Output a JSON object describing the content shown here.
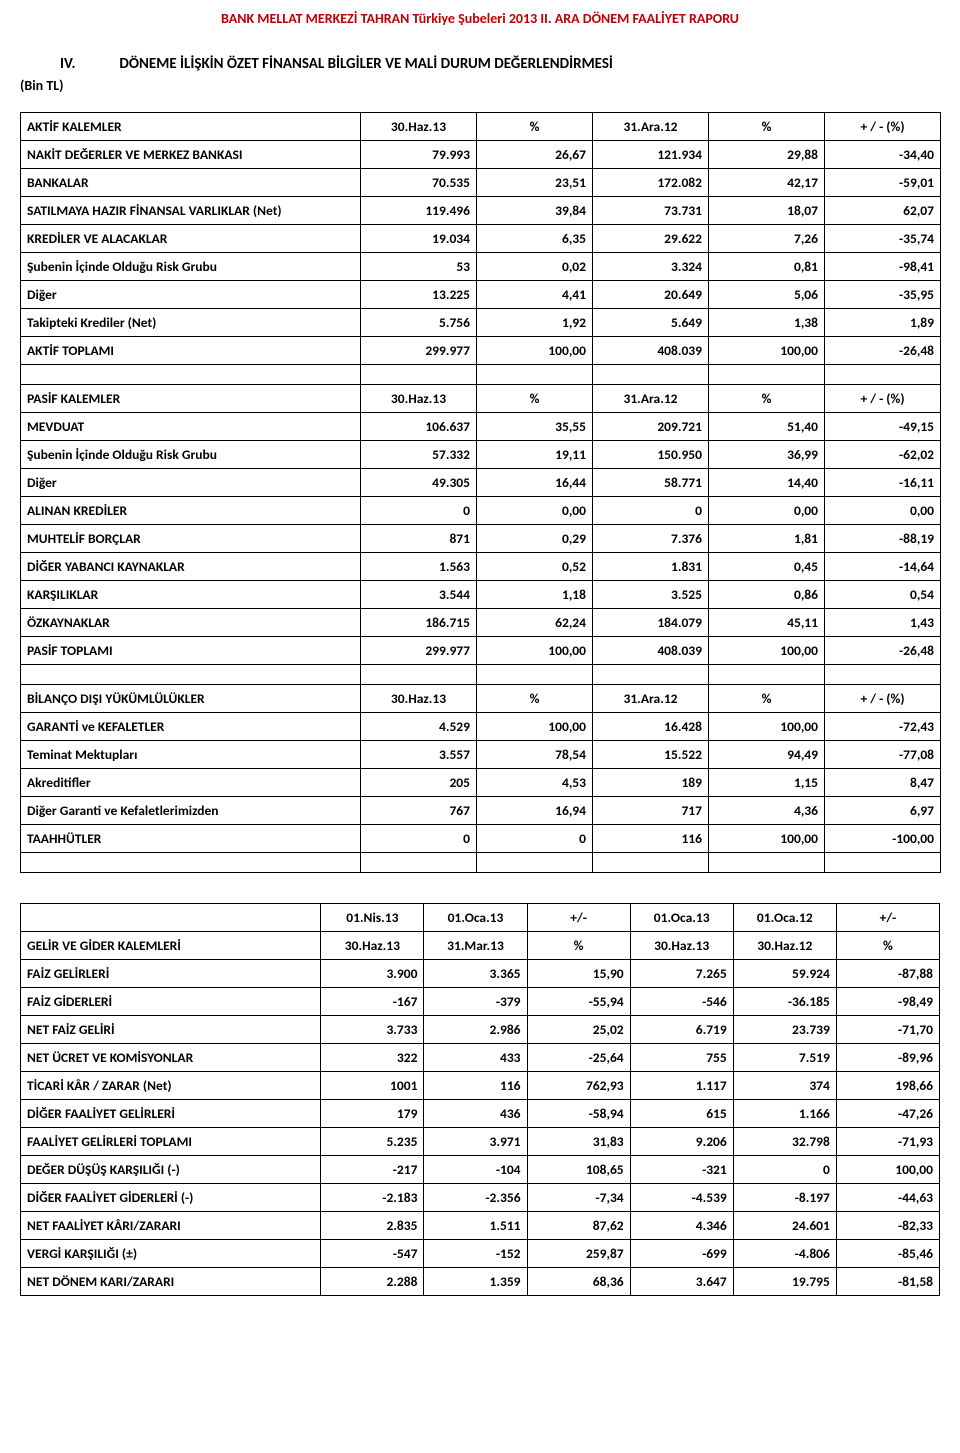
{
  "page_title": "BANK MELLAT MERKEZİ TAHRAN Türkiye Şubeleri 2013 II. ARA DÖNEM FAALİYET RAPORU",
  "section": {
    "roman": "IV.",
    "title": "DÖNEME İLİŞKİN ÖZET FİNANSAL BİLGİLER VE MALİ DURUM DEĞERLENDİRMESİ",
    "subnote": "(Bin TL)"
  },
  "colors": {
    "title": "#C00000",
    "border": "#000000",
    "text": "#000000",
    "bg": "#ffffff"
  },
  "t1": {
    "h": [
      "AKTİF KALEMLER",
      "30.Haz.13",
      "%",
      "31.Ara.12",
      "%",
      "+ / - (%)"
    ],
    "rows": [
      [
        "NAKİT DEĞERLER VE MERKEZ BANKASI",
        "79.993",
        "26,67",
        "121.934",
        "29,88",
        "-34,40"
      ],
      [
        "BANKALAR",
        "70.535",
        "23,51",
        "172.082",
        "42,17",
        "-59,01"
      ],
      [
        "SATILMAYA HAZIR FİNANSAL VARLIKLAR (Net)",
        "119.496",
        "39,84",
        "73.731",
        "18,07",
        "62,07"
      ],
      [
        "KREDİLER VE ALACAKLAR",
        "19.034",
        "6,35",
        "29.622",
        "7,26",
        "-35,74"
      ],
      [
        "Şubenin İçinde Olduğu Risk Grubu",
        "53",
        "0,02",
        "3.324",
        "0,81",
        "-98,41"
      ],
      [
        "Diğer",
        "13.225",
        "4,41",
        "20.649",
        "5,06",
        "-35,95"
      ],
      [
        "Takipteki Krediler (Net)",
        "5.756",
        "1,92",
        "5.649",
        "1,38",
        "1,89"
      ],
      [
        "AKTİF TOPLAMI",
        "299.977",
        "100,00",
        "408.039",
        "100,00",
        "-26,48"
      ]
    ]
  },
  "t2": {
    "h": [
      "PASİF KALEMLER",
      "30.Haz.13",
      "%",
      "31.Ara.12",
      "%",
      "+ / - (%)"
    ],
    "rows": [
      [
        "MEVDUAT",
        "106.637",
        "35,55",
        "209.721",
        "51,40",
        "-49,15"
      ],
      [
        "Şubenin İçinde Olduğu Risk Grubu",
        "57.332",
        "19,11",
        "150.950",
        "36,99",
        "-62,02"
      ],
      [
        "Diğer",
        "49.305",
        "16,44",
        "58.771",
        "14,40",
        "-16,11"
      ],
      [
        "ALINAN KREDİLER",
        "0",
        "0,00",
        "0",
        "0,00",
        "0,00"
      ],
      [
        "MUHTELİF BORÇLAR",
        "871",
        "0,29",
        "7.376",
        "1,81",
        "-88,19"
      ],
      [
        "DİĞER YABANCI KAYNAKLAR",
        "1.563",
        "0,52",
        "1.831",
        "0,45",
        "-14,64"
      ],
      [
        "KARŞILIKLAR",
        "3.544",
        "1,18",
        "3.525",
        "0,86",
        "0,54"
      ],
      [
        "ÖZKAYNAKLAR",
        "186.715",
        "62,24",
        "184.079",
        "45,11",
        "1,43"
      ],
      [
        "PASİF TOPLAMI",
        "299.977",
        "100,00",
        "408.039",
        "100,00",
        "-26,48"
      ]
    ]
  },
  "t3": {
    "h": [
      "BİLANÇO DIŞI YÜKÜMLÜLÜKLER",
      "30.Haz.13",
      "%",
      "31.Ara.12",
      "%",
      "+ / - (%)"
    ],
    "rows": [
      [
        "GARANTİ ve KEFALETLER",
        "4.529",
        "100,00",
        "16.428",
        "100,00",
        "-72,43"
      ],
      [
        "Teminat Mektupları",
        "3.557",
        "78,54",
        "15.522",
        "94,49",
        "-77,08"
      ],
      [
        "Akreditifler",
        "205",
        "4,53",
        "189",
        "1,15",
        "8,47"
      ],
      [
        "Diğer Garanti ve Kefaletlerimizden",
        "767",
        "16,94",
        "717",
        "4,36",
        "6,97"
      ],
      [
        "TAAHHÜTLER",
        "0",
        "0",
        "116",
        "100,00",
        "-100,00"
      ]
    ]
  },
  "t4": {
    "top": [
      "",
      "01.Nis.13",
      "01.Oca.13",
      "+/-",
      "01.Oca.13",
      "01.Oca.12",
      "+/-"
    ],
    "h": [
      "GELİR VE GİDER KALEMLERİ",
      "30.Haz.13",
      "31.Mar.13",
      "%",
      "30.Haz.13",
      "30.Haz.12",
      "%"
    ],
    "rows": [
      [
        "FAİZ GELİRLERİ",
        "3.900",
        "3.365",
        "15,90",
        "7.265",
        "59.924",
        "-87,88"
      ],
      [
        "FAİZ GİDERLERİ",
        "-167",
        "-379",
        "-55,94",
        "-546",
        "-36.185",
        "-98,49"
      ],
      [
        "NET FAİZ GELİRİ",
        "3.733",
        "2.986",
        "25,02",
        "6.719",
        "23.739",
        "-71,70"
      ],
      [
        "NET ÜCRET VE KOMİSYONLAR",
        "322",
        "433",
        "-25,64",
        "755",
        "7.519",
        "-89,96"
      ],
      [
        "TİCARİ KÂR / ZARAR (Net)",
        "1001",
        "116",
        "762,93",
        "1.117",
        "374",
        "198,66"
      ],
      [
        "DİĞER FAALİYET GELİRLERİ",
        "179",
        "436",
        "-58,94",
        "615",
        "1.166",
        "-47,26"
      ],
      [
        "FAALİYET GELİRLERİ TOPLAMI",
        "5.235",
        "3.971",
        "31,83",
        "9.206",
        "32.798",
        "-71,93"
      ],
      [
        "DEĞER DÜŞÜŞ KARŞILIĞI (-)",
        "-217",
        "-104",
        "108,65",
        "-321",
        "0",
        "100,00"
      ],
      [
        "DİĞER FAALİYET GİDERLERİ (-)",
        "-2.183",
        "-2.356",
        "-7,34",
        "-4.539",
        "-8.197",
        "-44,63"
      ],
      [
        "NET FAALİYET KÂRI/ZARARI",
        "2.835",
        "1.511",
        "87,62",
        "4.346",
        "24.601",
        "-82,33"
      ],
      [
        "VERGİ KARŞILIĞI (±)",
        "-547",
        "-152",
        "259,87",
        "-699",
        "-4.806",
        "-85,46"
      ],
      [
        "NET DÖNEM KARI/ZARARI",
        "2.288",
        "1.359",
        "68,36",
        "3.647",
        "19.795",
        "-81,58"
      ]
    ]
  }
}
